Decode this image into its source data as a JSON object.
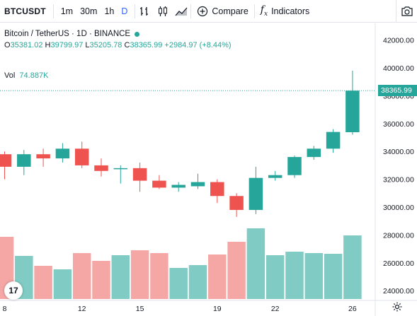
{
  "toolbar": {
    "symbol": "BTCUSDT",
    "intervals": [
      "1m",
      "30m",
      "1h",
      "D"
    ],
    "active_interval": "D",
    "compare_label": "Compare",
    "indicators_label": "Indicators",
    "icons": [
      "bar-style-icon",
      "candles-icon",
      "area-icon",
      "plus-circle-icon",
      "fx-icon",
      "camera-icon"
    ]
  },
  "legend": {
    "title": "Bitcoin / TetherUS · 1D · BINANCE",
    "open_label": "O",
    "open": "35381.02",
    "high_label": "H",
    "high": "39799.97",
    "low_label": "L",
    "low": "35205.78",
    "close_label": "C",
    "close": "38365.99",
    "change": "+2984.97 (+8.44%)",
    "vol_label": "Vol",
    "vol": "74.887K"
  },
  "colors": {
    "up": "#26a69a",
    "down": "#ef5350",
    "vol_up": "#80cbc4",
    "vol_down": "#f4a7a4"
  },
  "last_price_label": "38365.99",
  "logo_text": "17",
  "chart_data": {
    "type": "candlestick",
    "last_price": 38365.99,
    "price_axis": {
      "ticks": [
        "42000.00",
        "40000.00",
        "38000.00",
        "36000.00",
        "34000.00",
        "32000.00",
        "30000.00",
        "28000.00",
        "26000.00",
        "24000.00"
      ],
      "range": [
        23300,
        43200
      ]
    },
    "x_ticks": [
      {
        "label": "8",
        "index": 0
      },
      {
        "label": "12",
        "index": 4
      },
      {
        "label": "15",
        "index": 7
      },
      {
        "label": "19",
        "index": 11
      },
      {
        "label": "22",
        "index": 14
      },
      {
        "label": "26",
        "index": 18
      }
    ],
    "candles": [
      {
        "o": 33800,
        "h": 34000,
        "l": 32000,
        "c": 32900
      },
      {
        "o": 32900,
        "h": 34100,
        "l": 32300,
        "c": 33800
      },
      {
        "o": 33800,
        "h": 34200,
        "l": 32900,
        "c": 33500
      },
      {
        "o": 33500,
        "h": 34600,
        "l": 33200,
        "c": 34200
      },
      {
        "o": 34200,
        "h": 34700,
        "l": 32800,
        "c": 33000
      },
      {
        "o": 33000,
        "h": 33500,
        "l": 32200,
        "c": 32600
      },
      {
        "o": 32750,
        "h": 33000,
        "l": 31700,
        "c": 32800
      },
      {
        "o": 32800,
        "h": 33200,
        "l": 31100,
        "c": 31900
      },
      {
        "o": 31900,
        "h": 32300,
        "l": 31300,
        "c": 31400
      },
      {
        "o": 31400,
        "h": 31800,
        "l": 31100,
        "c": 31600
      },
      {
        "o": 31500,
        "h": 32400,
        "l": 31300,
        "c": 31800
      },
      {
        "o": 31800,
        "h": 32000,
        "l": 30300,
        "c": 30800
      },
      {
        "o": 30800,
        "h": 31000,
        "l": 29300,
        "c": 29800
      },
      {
        "o": 29800,
        "h": 32900,
        "l": 29500,
        "c": 32100
      },
      {
        "o": 32100,
        "h": 32600,
        "l": 31900,
        "c": 32300
      },
      {
        "o": 32300,
        "h": 33700,
        "l": 32100,
        "c": 33600
      },
      {
        "o": 33600,
        "h": 34400,
        "l": 33400,
        "c": 34200
      },
      {
        "o": 34200,
        "h": 35600,
        "l": 33900,
        "c": 35400
      },
      {
        "o": 35381.02,
        "h": 39799.97,
        "l": 35205.78,
        "c": 38365.99
      }
    ],
    "volume_relative": [
      0.88,
      0.61,
      0.47,
      0.42,
      0.65,
      0.54,
      0.62,
      0.69,
      0.65,
      0.44,
      0.48,
      0.63,
      0.81,
      1.0,
      0.62,
      0.67,
      0.65,
      0.64,
      0.9
    ]
  }
}
